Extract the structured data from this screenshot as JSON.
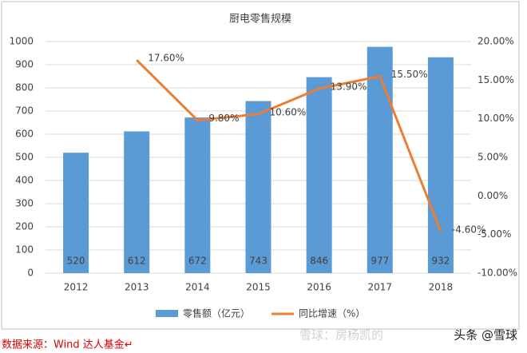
{
  "chart_data": {
    "type": "bar_line",
    "title": "厨电零售规模",
    "categories": [
      "2012",
      "2013",
      "2014",
      "2015",
      "2016",
      "2017",
      "2018"
    ],
    "series": [
      {
        "name": "零售额（亿元）",
        "color": "#5b9bd5",
        "type": "bar",
        "values": [
          520,
          612,
          672,
          743,
          846,
          977,
          932
        ]
      },
      {
        "name": "同比增速（%）",
        "color": "#ed7d31",
        "type": "line",
        "axis": "y2",
        "values": [
          null,
          17.6,
          9.8,
          10.6,
          13.9,
          15.5,
          -4.6
        ],
        "value_labels": [
          null,
          "17.60%",
          "9.80%",
          "10.60%",
          "13.90%",
          "15.50%",
          "-4.60%"
        ]
      }
    ],
    "ylim": [
      0,
      1000
    ],
    "yticks": [
      0,
      100,
      200,
      300,
      400,
      500,
      600,
      700,
      800,
      900,
      1000
    ],
    "y2lim": [
      -10,
      20
    ],
    "y2ticks": [
      {
        "value": -10,
        "label": "-10.00%"
      },
      {
        "value": -5,
        "label": "-5.00%"
      },
      {
        "value": 0,
        "label": "0.00%"
      },
      {
        "value": 5,
        "label": "5.00%"
      },
      {
        "value": 10,
        "label": "10.00%"
      },
      {
        "value": 15,
        "label": "15.00%"
      },
      {
        "value": 20,
        "label": "20.00%"
      }
    ],
    "grid": true,
    "legend": "bottom",
    "source": "数据来源：Wind  达人基金↵",
    "watermark": [
      "雪球：房杨凯的",
      "头条 @雪球"
    ]
  }
}
